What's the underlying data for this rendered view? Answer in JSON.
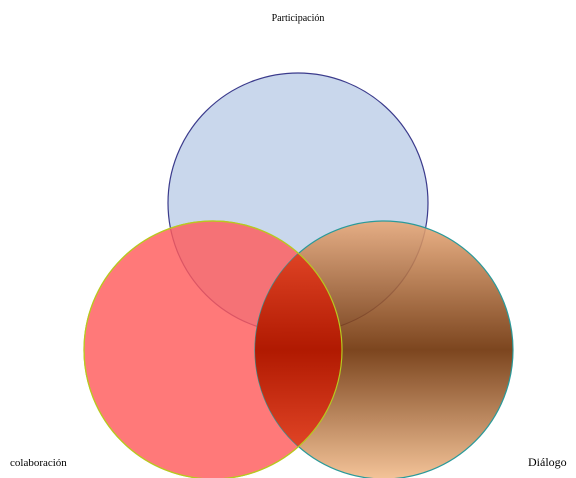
{
  "nodes": [
    {
      "label": "Participación"
    },
    {
      "label": "colaboración"
    },
    {
      "label": "Diálogo"
    }
  ]
}
